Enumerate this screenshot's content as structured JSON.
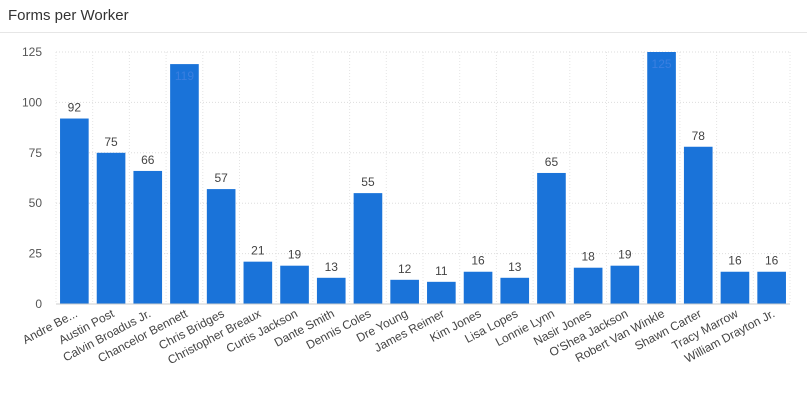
{
  "header": {
    "title": "Forms per Worker"
  },
  "chart_data": {
    "type": "bar",
    "title": "Forms per Worker",
    "xlabel": "",
    "ylabel": "",
    "ylim": [
      0,
      125
    ],
    "yticks": [
      0,
      25,
      50,
      75,
      100,
      125
    ],
    "grid": true,
    "legend": "none",
    "bar_color": "#1a73d9",
    "categories": [
      "Andre Be...",
      "Austin Post",
      "Calvin Broadus Jr.",
      "Chancelor Bennett",
      "Chris Bridges",
      "Christopher Breaux",
      "Curtis Jackson",
      "Dante Smith",
      "Dennis Coles",
      "Dre Young",
      "James Reimer",
      "Kim Jones",
      "Lisa Lopes",
      "Lonnie Lynn",
      "Nasir Jones",
      "O'Shea Jackson",
      "Robert Van Winkle",
      "Shawn Carter",
      "Tracy Marrow",
      "William Drayton Jr."
    ],
    "values": [
      92,
      75,
      66,
      119,
      57,
      21,
      19,
      13,
      55,
      12,
      11,
      16,
      13,
      65,
      18,
      19,
      125,
      78,
      16,
      16
    ],
    "data_labels": [
      "92",
      "75",
      "66",
      "119",
      "57",
      "21",
      "19",
      "13",
      "55",
      "12",
      "11",
      "16",
      "13",
      "65",
      "18",
      "19",
      "125",
      "78",
      "16",
      "16"
    ]
  }
}
